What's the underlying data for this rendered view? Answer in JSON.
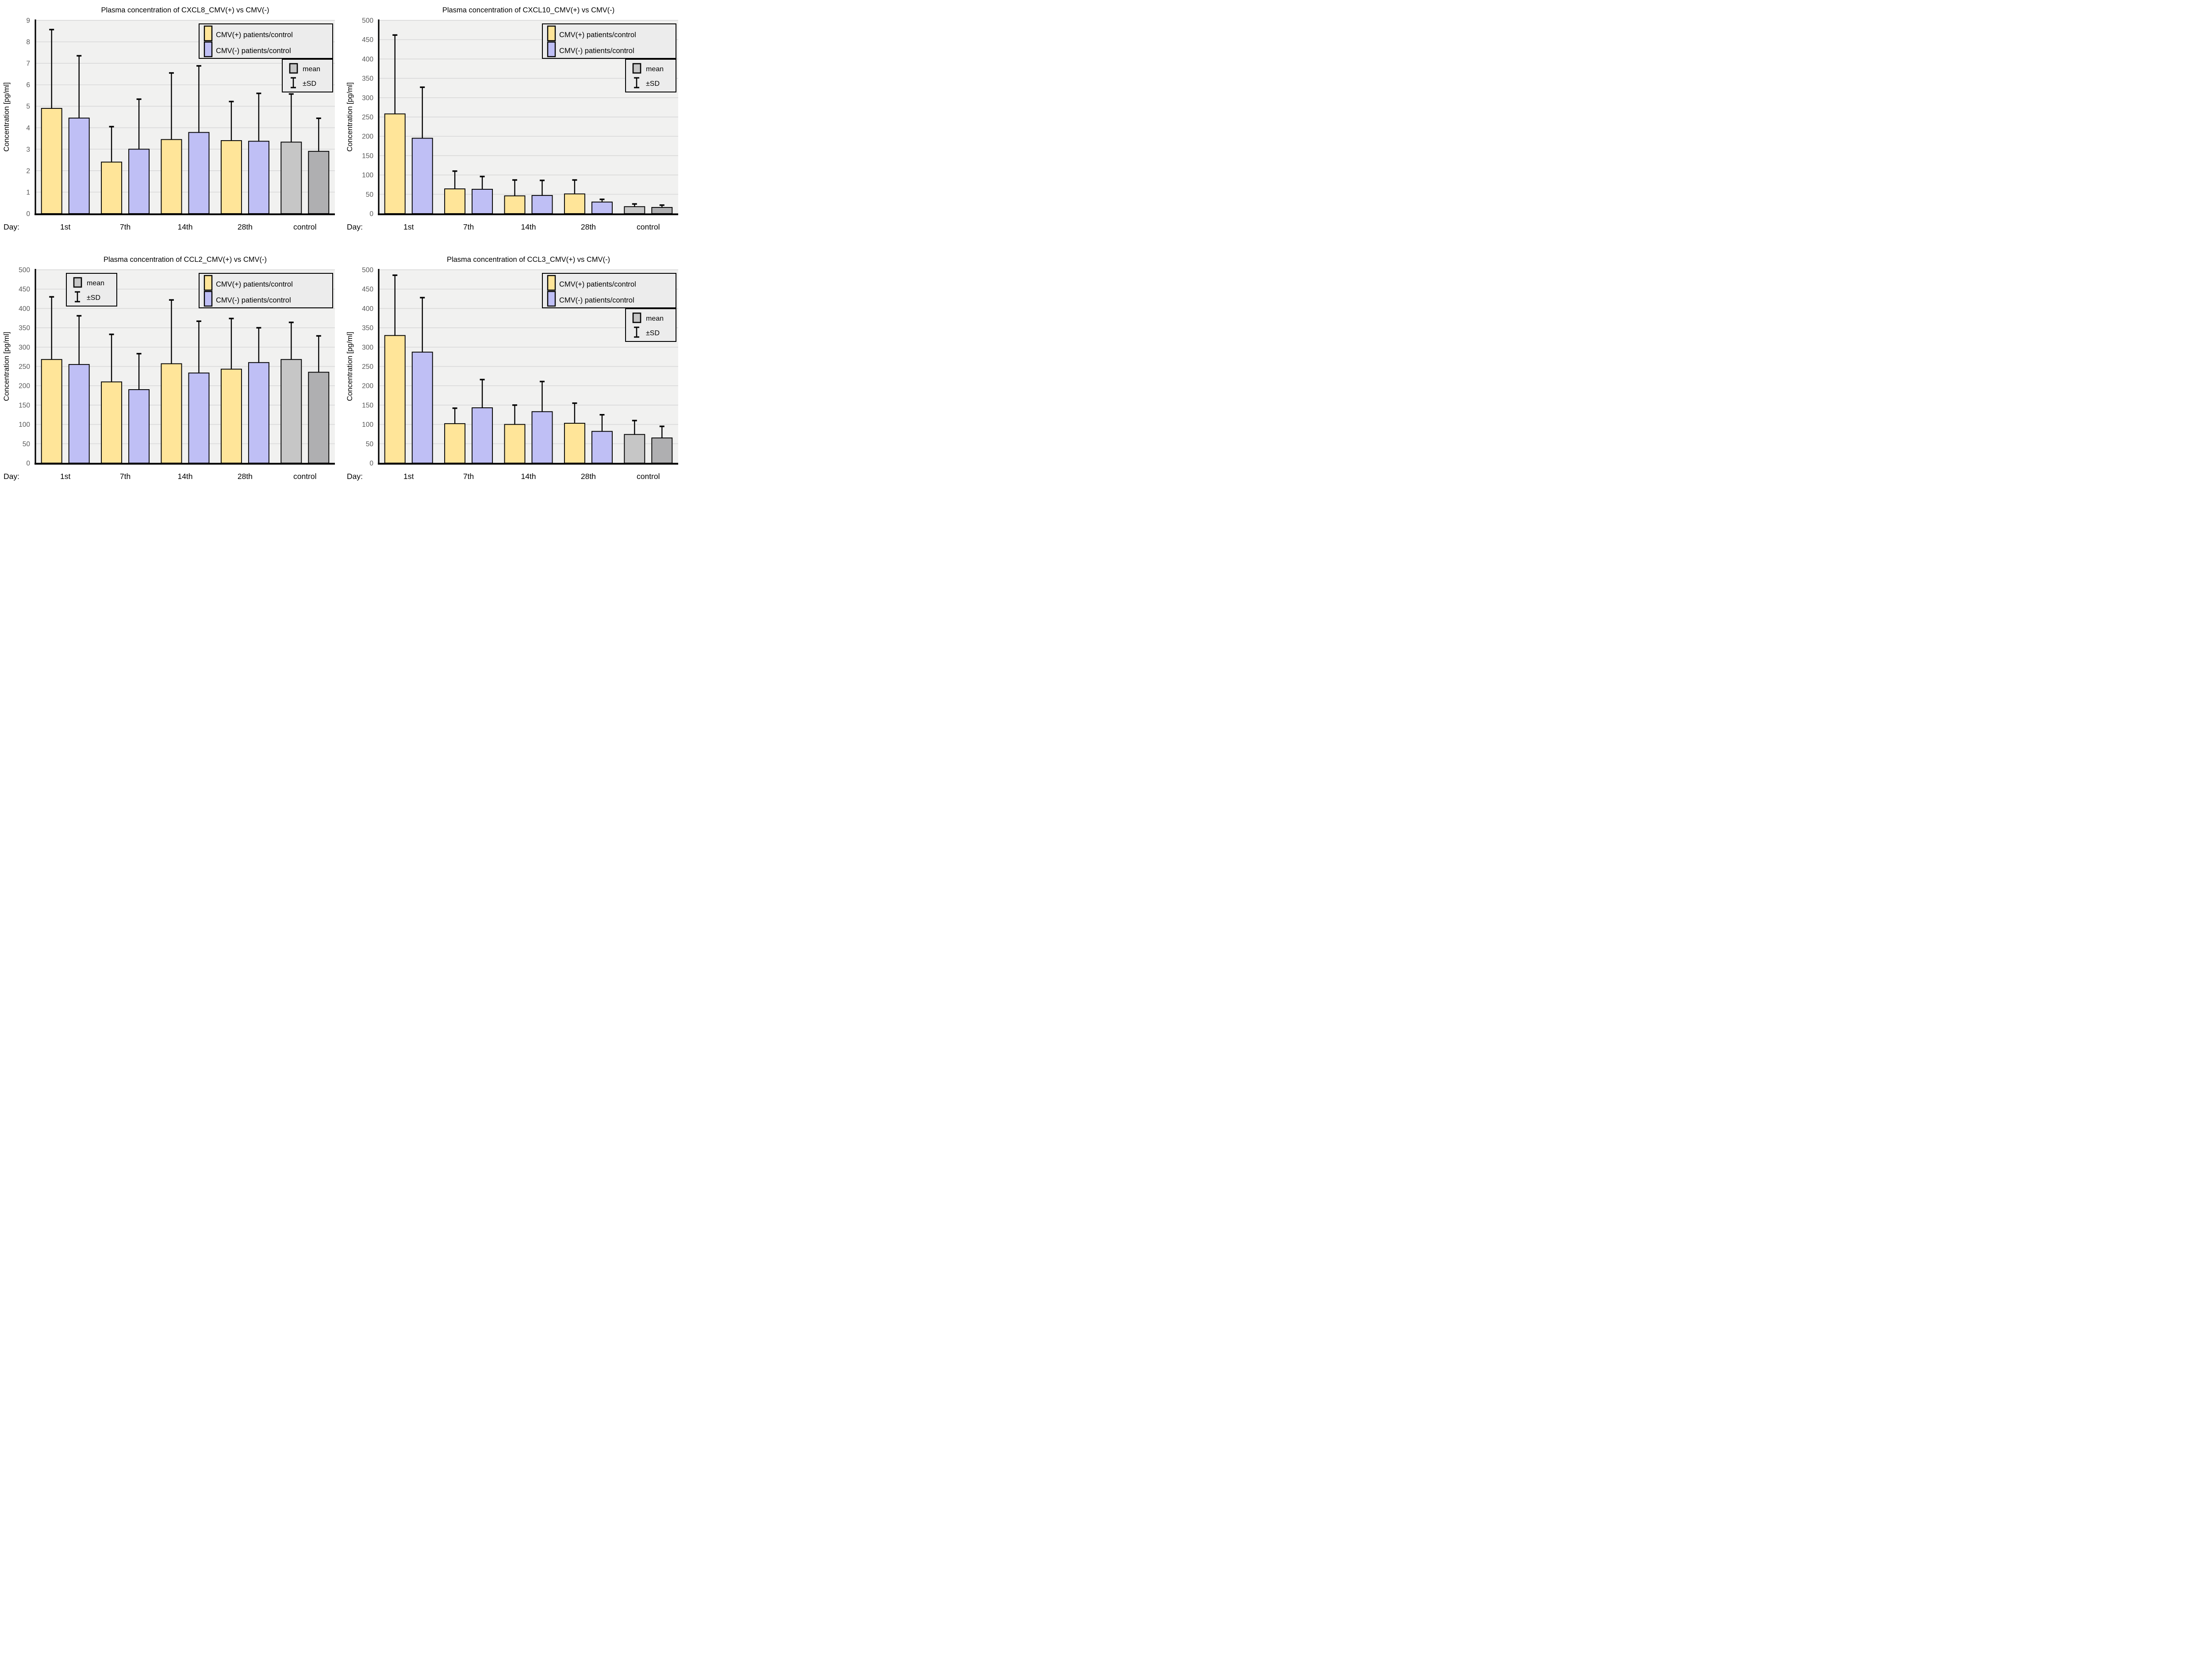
{
  "figure": {
    "layout": "2x2 panel of bar charts"
  },
  "colors": {
    "cmv_pos": "#FFE599",
    "cmv_neg": "#BFBFF5",
    "ctrl_light": "#C6C6C6",
    "ctrl_dark": "#AFAFB1",
    "plot_bg": "#F1F1F0",
    "gridline": "#DADADA",
    "axis": "#000000",
    "tick_label": "#595959",
    "text": "#000000",
    "legend_bg": "#ECECEC",
    "legend_border": "#000000",
    "bar_border": "#000000",
    "error_bar": "#000000"
  },
  "legend": {
    "cmv_pos_label": "CMV(+) patients/control",
    "cmv_neg_label": "CMV(-) patients/control",
    "mean_label": "mean",
    "sd_label": "±SD"
  },
  "chart_data": [
    {
      "id": "cxcl8",
      "type": "bar",
      "title": "Plasma concentration of CXCL8_CMV(+) vs CMV(-)",
      "ylabel": "Concentration [pg/ml]",
      "xlabel_prefix": "Day:",
      "ylim": [
        0,
        9
      ],
      "ytick_step": 1,
      "grid": true,
      "legend_position": "top-right",
      "meansd_position": "right-below",
      "categories": [
        "1st",
        "7th",
        "14th",
        "28th",
        "control"
      ],
      "groups": [
        {
          "label": "1st",
          "bars": [
            {
              "series": "cmv_pos",
              "mean": 4.9,
              "sd": 3.67
            },
            {
              "series": "cmv_neg",
              "mean": 4.45,
              "sd": 2.9
            }
          ]
        },
        {
          "label": "7th",
          "bars": [
            {
              "series": "cmv_pos",
              "mean": 2.4,
              "sd": 1.65
            },
            {
              "series": "cmv_neg",
              "mean": 3.0,
              "sd": 2.33
            }
          ]
        },
        {
          "label": "14th",
          "bars": [
            {
              "series": "cmv_pos",
              "mean": 3.45,
              "sd": 3.1
            },
            {
              "series": "cmv_neg",
              "mean": 3.78,
              "sd": 3.1
            }
          ]
        },
        {
          "label": "28th",
          "bars": [
            {
              "series": "cmv_pos",
              "mean": 3.4,
              "sd": 1.82
            },
            {
              "series": "cmv_neg",
              "mean": 3.37,
              "sd": 2.23
            }
          ]
        },
        {
          "label": "control",
          "bars": [
            {
              "series": "ctrl_light",
              "mean": 3.33,
              "sd": 2.24
            },
            {
              "series": "ctrl_dark",
              "mean": 2.9,
              "sd": 1.54
            }
          ]
        }
      ]
    },
    {
      "id": "cxcl10",
      "type": "bar",
      "title": "Plasma concentration of CXCL10_CMV(+) vs CMV(-)",
      "ylabel": "Concentration [pg/ml]",
      "xlabel_prefix": "Day:",
      "ylim": [
        0,
        500
      ],
      "ytick_step": 50,
      "grid": true,
      "legend_position": "top-right",
      "meansd_position": "right-below",
      "categories": [
        "1st",
        "7th",
        "14th",
        "28th",
        "control"
      ],
      "groups": [
        {
          "label": "1st",
          "bars": [
            {
              "series": "cmv_pos",
              "mean": 258,
              "sd": 204
            },
            {
              "series": "cmv_neg",
              "mean": 195,
              "sd": 132
            }
          ]
        },
        {
          "label": "7th",
          "bars": [
            {
              "series": "cmv_pos",
              "mean": 64,
              "sd": 46
            },
            {
              "series": "cmv_neg",
              "mean": 63,
              "sd": 33
            }
          ]
        },
        {
          "label": "14th",
          "bars": [
            {
              "series": "cmv_pos",
              "mean": 46,
              "sd": 41
            },
            {
              "series": "cmv_neg",
              "mean": 47,
              "sd": 39
            }
          ]
        },
        {
          "label": "28th",
          "bars": [
            {
              "series": "cmv_pos",
              "mean": 51,
              "sd": 36
            },
            {
              "series": "cmv_neg",
              "mean": 30,
              "sd": 7
            }
          ]
        },
        {
          "label": "control",
          "bars": [
            {
              "series": "ctrl_light",
              "mean": 18,
              "sd": 7
            },
            {
              "series": "ctrl_dark",
              "mean": 16,
              "sd": 6
            }
          ]
        }
      ]
    },
    {
      "id": "ccl2",
      "type": "bar",
      "title": "Plasma concentration of CCL2_CMV(+) vs CMV(-)",
      "ylabel": "Concentration [pg/ml]",
      "xlabel_prefix": "Day:",
      "ylim": [
        0,
        500
      ],
      "ytick_step": 50,
      "grid": true,
      "legend_position": "top-right",
      "meansd_position": "left-top",
      "categories": [
        "1st",
        "7th",
        "14th",
        "28th",
        "control"
      ],
      "groups": [
        {
          "label": "1st",
          "bars": [
            {
              "series": "cmv_pos",
              "mean": 268,
              "sd": 162
            },
            {
              "series": "cmv_neg",
              "mean": 255,
              "sd": 126
            }
          ]
        },
        {
          "label": "7th",
          "bars": [
            {
              "series": "cmv_pos",
              "mean": 210,
              "sd": 123
            },
            {
              "series": "cmv_neg",
              "mean": 190,
              "sd": 93
            }
          ]
        },
        {
          "label": "14th",
          "bars": [
            {
              "series": "cmv_pos",
              "mean": 257,
              "sd": 165
            },
            {
              "series": "cmv_neg",
              "mean": 233,
              "sd": 134
            }
          ]
        },
        {
          "label": "28th",
          "bars": [
            {
              "series": "cmv_pos",
              "mean": 243,
              "sd": 131
            },
            {
              "series": "cmv_neg",
              "mean": 260,
              "sd": 90
            }
          ]
        },
        {
          "label": "control",
          "bars": [
            {
              "series": "ctrl_light",
              "mean": 268,
              "sd": 96
            },
            {
              "series": "ctrl_dark",
              "mean": 235,
              "sd": 94
            }
          ]
        }
      ]
    },
    {
      "id": "ccl3",
      "type": "bar",
      "title": "Plasma concentration of CCL3_CMV(+) vs CMV(-)",
      "ylabel": "Concentration [pg/ml]",
      "xlabel_prefix": "Day:",
      "ylim": [
        0,
        500
      ],
      "ytick_step": 50,
      "grid": true,
      "legend_position": "top-right",
      "meansd_position": "right-below",
      "categories": [
        "1st",
        "7th",
        "14th",
        "28th",
        "control"
      ],
      "groups": [
        {
          "label": "1st",
          "bars": [
            {
              "series": "cmv_pos",
              "mean": 330,
              "sd": 156
            },
            {
              "series": "cmv_neg",
              "mean": 287,
              "sd": 141
            }
          ]
        },
        {
          "label": "7th",
          "bars": [
            {
              "series": "cmv_pos",
              "mean": 102,
              "sd": 40
            },
            {
              "series": "cmv_neg",
              "mean": 143,
              "sd": 73
            }
          ]
        },
        {
          "label": "14th",
          "bars": [
            {
              "series": "cmv_pos",
              "mean": 100,
              "sd": 50
            },
            {
              "series": "cmv_neg",
              "mean": 133,
              "sd": 78
            }
          ]
        },
        {
          "label": "28th",
          "bars": [
            {
              "series": "cmv_pos",
              "mean": 103,
              "sd": 52
            },
            {
              "series": "cmv_neg",
              "mean": 82,
              "sd": 43
            }
          ]
        },
        {
          "label": "control",
          "bars": [
            {
              "series": "ctrl_light",
              "mean": 74,
              "sd": 36
            },
            {
              "series": "ctrl_dark",
              "mean": 65,
              "sd": 30
            }
          ]
        }
      ]
    }
  ]
}
